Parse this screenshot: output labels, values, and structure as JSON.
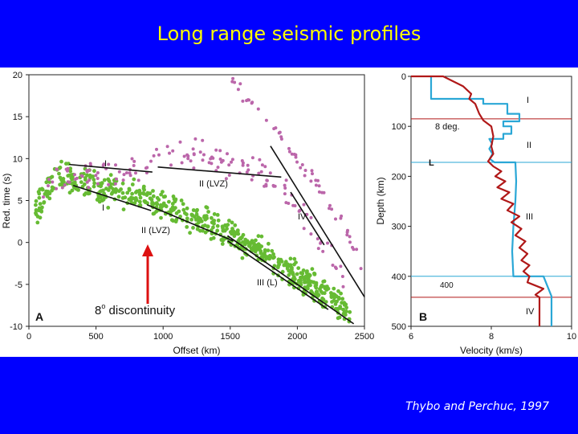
{
  "slide": {
    "title": "Long range seismic profiles",
    "citation": "Thybo and Perchuc, 1997",
    "annotation": "8",
    "annotation_sup": "o",
    "annotation_rest": " discontinuity"
  },
  "colors": {
    "background": "#0000ff",
    "title": "#ffff00",
    "green": "#66bb33",
    "magenta": "#bb66aa",
    "line": "#111111",
    "arrow": "#dd1111",
    "blue": "#2aa7d6",
    "red": "#b01818"
  },
  "chart_data": [
    {
      "type": "scatter",
      "panel_label": "A",
      "xlabel": "Offset (km)",
      "ylabel": "Red. time (s)",
      "xlim": [
        0,
        2500
      ],
      "ylim": [
        -10,
        20
      ],
      "xticks": [
        "0",
        "500",
        "1000",
        "1500",
        "2000",
        "2500"
      ],
      "yticks": [
        "-10",
        "-5",
        "0",
        "5",
        "10",
        "15",
        "20"
      ],
      "series": [
        {
          "name": "green picks",
          "color": "#66bb33",
          "trend": [
            [
              50,
              3.5
            ],
            [
              150,
              6.5
            ],
            [
              250,
              8.2
            ],
            [
              400,
              7
            ],
            [
              700,
              5.8
            ],
            [
              1000,
              4.5
            ],
            [
              1300,
              2.5
            ],
            [
              1600,
              0
            ],
            [
              1900,
              -3
            ],
            [
              2200,
              -6
            ],
            [
              2400,
              -8.5
            ]
          ]
        },
        {
          "name": "magenta picks",
          "color": "#bb66aa",
          "trend": [
            [
              100,
              6
            ],
            [
              300,
              8.5
            ],
            [
              500,
              8
            ],
            [
              800,
              9
            ],
            [
              1000,
              10.5
            ],
            [
              1200,
              11
            ],
            [
              1400,
              9.5
            ],
            [
              1800,
              8
            ],
            [
              2000,
              4
            ],
            [
              2200,
              0
            ],
            [
              2350,
              -5
            ]
          ]
        },
        {
          "name": "magenta upper branch",
          "color": "#bb66aa",
          "trend": [
            [
              1480,
              20
            ],
            [
              1600,
              17.5
            ],
            [
              1750,
              15
            ],
            [
              1950,
              11
            ],
            [
              2100,
              8
            ],
            [
              2250,
              4
            ],
            [
              2380,
              1
            ],
            [
              2480,
              -3
            ]
          ]
        }
      ],
      "lines": [
        {
          "label": "I",
          "points": [
            [
              300,
              9.3
            ],
            [
              920,
              8.4
            ]
          ]
        },
        {
          "label": "II (LVZ)",
          "points": [
            [
              960,
              9
            ],
            [
              1880,
              7.8
            ]
          ]
        },
        {
          "label": "I",
          "points": [
            [
              330,
              6.8
            ],
            [
              910,
              3.8
            ]
          ]
        },
        {
          "label": "II (LVZ)",
          "points": [
            [
              880,
              4.5
            ],
            [
              1520,
              0.2
            ]
          ]
        },
        {
          "label": "III (L)",
          "points": [
            [
              1480,
              0.8
            ],
            [
              2420,
              -9.7
            ]
          ]
        },
        {
          "label": "IV",
          "points": [
            [
              1800,
              11.5
            ],
            [
              2500,
              -6.5
            ]
          ]
        },
        {
          "label": "",
          "points": [
            [
              1480,
              0.2
            ],
            [
              2230,
              -8
            ]
          ]
        },
        {
          "label": "",
          "points": [
            [
              1950,
              6
            ],
            [
              2200,
              -0.3
            ]
          ]
        }
      ],
      "labels": [
        "I",
        "II (LVZ)",
        "I",
        "II (LVZ)",
        "III (L)",
        "IV"
      ]
    },
    {
      "type": "line",
      "panel_label": "B",
      "xlabel": "Velocity (km/s)",
      "ylabel": "Depth (km)",
      "xlim": [
        6,
        10
      ],
      "ylim": [
        500,
        0
      ],
      "xticks": [
        "6",
        "8",
        "10"
      ],
      "yticks": [
        "0",
        "100",
        "200",
        "300",
        "400",
        "500"
      ],
      "series": [
        {
          "name": "blue model",
          "color": "#2aa7d6",
          "points": [
            [
              6.5,
              0
            ],
            [
              6.5,
              45
            ],
            [
              7.8,
              45
            ],
            [
              7.8,
              55
            ],
            [
              8.4,
              55
            ],
            [
              8.4,
              75
            ],
            [
              8.7,
              75
            ],
            [
              8.7,
              90
            ],
            [
              8.3,
              90
            ],
            [
              8.3,
              100
            ],
            [
              8.5,
              100
            ],
            [
              8.5,
              115
            ],
            [
              8.3,
              115
            ],
            [
              8.3,
              125
            ],
            [
              7.95,
              125
            ],
            [
              8.02,
              135
            ],
            [
              7.95,
              145
            ],
            [
              8.03,
              155
            ],
            [
              7.96,
              165
            ],
            [
              8.08,
              172
            ],
            [
              8.6,
              172
            ],
            [
              8.62,
              210
            ],
            [
              8.6,
              250
            ],
            [
              8.55,
              300
            ],
            [
              8.52,
              350
            ],
            [
              8.55,
              400
            ],
            [
              9.3,
              400
            ],
            [
              9.5,
              440
            ],
            [
              9.5,
              500
            ]
          ]
        },
        {
          "name": "red model",
          "color": "#b01818",
          "points": [
            [
              6.0,
              0
            ],
            [
              6.8,
              0
            ],
            [
              7.3,
              20
            ],
            [
              7.5,
              35
            ],
            [
              7.45,
              45
            ],
            [
              7.6,
              55
            ],
            [
              7.7,
              75
            ],
            [
              7.8,
              88
            ],
            [
              8.0,
              100
            ],
            [
              8.05,
              120
            ],
            [
              8.0,
              140
            ],
            [
              8.05,
              155
            ],
            [
              7.92,
              170
            ],
            [
              8.05,
              180
            ],
            [
              8.25,
              190
            ],
            [
              8.1,
              200
            ],
            [
              8.35,
              210
            ],
            [
              8.15,
              222
            ],
            [
              8.45,
              232
            ],
            [
              8.25,
              245
            ],
            [
              8.55,
              255
            ],
            [
              8.4,
              268
            ],
            [
              8.7,
              280
            ],
            [
              8.5,
              292
            ],
            [
              8.75,
              305
            ],
            [
              8.6,
              318
            ],
            [
              8.85,
              330
            ],
            [
              8.7,
              343
            ],
            [
              8.9,
              355
            ],
            [
              8.75,
              368
            ],
            [
              8.95,
              378
            ],
            [
              8.8,
              390
            ],
            [
              8.95,
              400
            ],
            [
              8.9,
              412
            ],
            [
              9.3,
              425
            ],
            [
              9.1,
              437
            ],
            [
              9.2,
              442
            ],
            [
              9.2,
              500
            ]
          ]
        }
      ],
      "horizontal_lines": [
        {
          "depth": 85,
          "label": "",
          "color": "#b01818"
        },
        {
          "depth": 172,
          "label": "L",
          "color": "#2aa7d6"
        },
        {
          "depth": 400,
          "label": "400",
          "color": "#2aa7d6"
        },
        {
          "depth": 442,
          "label": "",
          "color": "#b01818"
        }
      ],
      "labels": [
        "I",
        "8 deg.",
        "II",
        "L",
        "III",
        "400",
        "IV"
      ]
    }
  ]
}
